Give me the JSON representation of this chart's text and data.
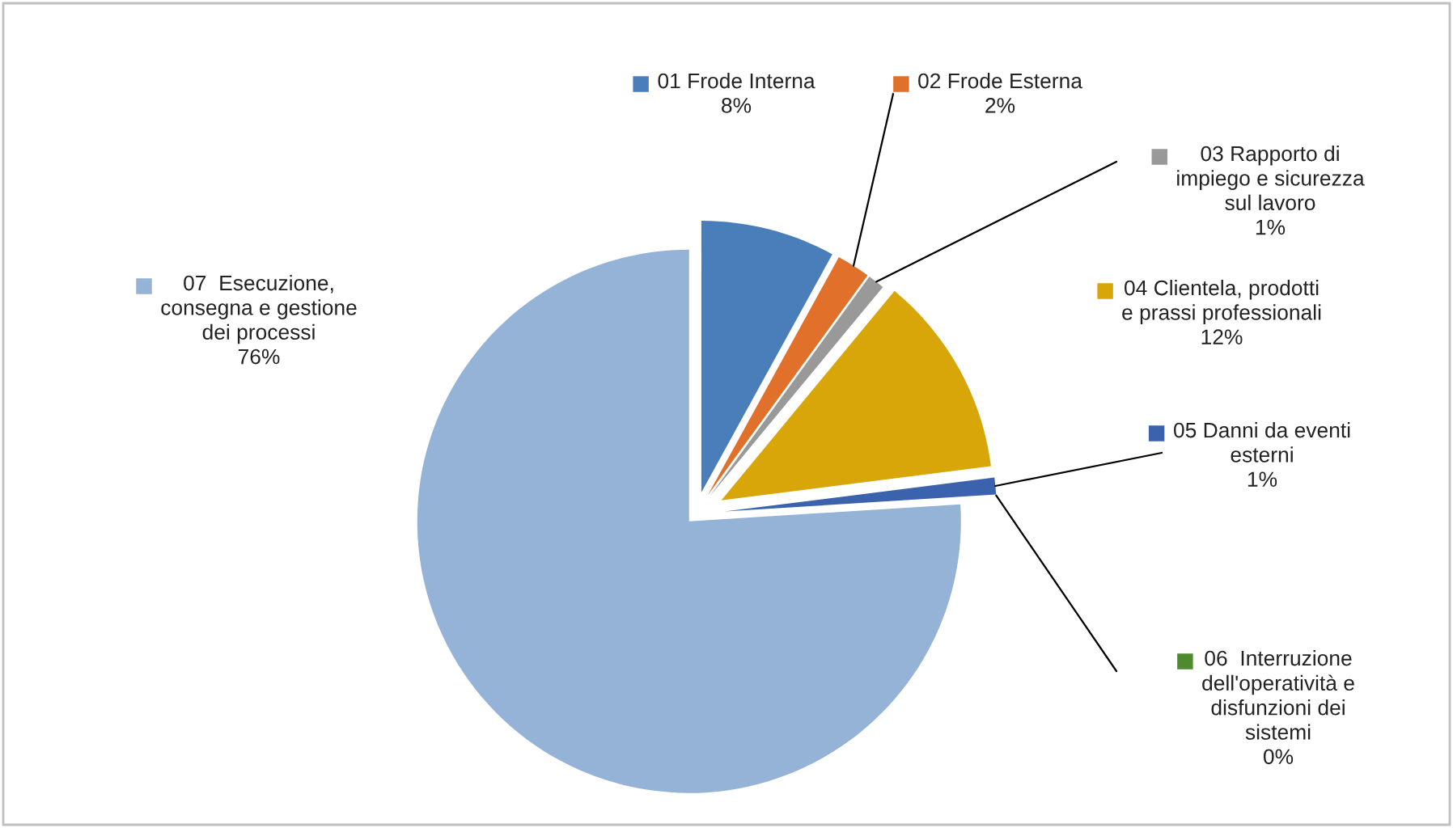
{
  "chart_data": {
    "type": "pie",
    "categories": [
      "01 Frode Interna",
      "02 Frode Esterna",
      "03 Rapporto di\nimpiego e sicurezza\nsul lavoro",
      "04 Clientela, prodotti\ne prassi professionali",
      "05 Danni da eventi\nesterni",
      "06  Interruzione\ndell'operatività e\ndisfunzioni dei\nsistemi",
      "07  Esecuzione,\nconsegna e gestione\ndei processi"
    ],
    "values": [
      8,
      2,
      1,
      12,
      1,
      0,
      76
    ],
    "value_labels": [
      "8%",
      "2%",
      "1%",
      "12%",
      "1%",
      "0%",
      "76%"
    ],
    "legend": "right",
    "colors": [
      "#4a7ebb",
      "#e0702a",
      "#999999",
      "#d9a60a",
      "#3b62ad",
      "#4e8a2e",
      "#95b3d7"
    ]
  }
}
